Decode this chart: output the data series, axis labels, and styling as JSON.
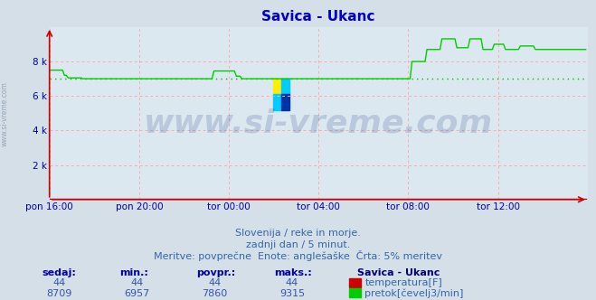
{
  "title": "Savica - Ukanc",
  "title_color": "#0000cc",
  "bg_color": "#d4dfe8",
  "plot_bg_color": "#dce8f0",
  "grid_color": "#ffaaaa",
  "axis_color": "#0000aa",
  "tick_color": "#0000aa",
  "xlabel_ticks": [
    "pon 16:00",
    "pon 20:00",
    "tor 00:00",
    "tor 04:00",
    "tor 08:00",
    "tor 12:00"
  ],
  "ylabel_ticks": [
    "2 k",
    "4 k",
    "6 k",
    "8 k"
  ],
  "ylabel_values": [
    2000,
    4000,
    6000,
    8000
  ],
  "ylim": [
    0,
    10000
  ],
  "xlim": [
    0,
    288
  ],
  "avg_value": 7000,
  "avg_color": "#00bb00",
  "flow_color": "#00cc00",
  "temp_color": "#cc0000",
  "watermark_text": "www.si-vreme.com",
  "watermark_color": "#1a3a8a",
  "watermark_alpha": 0.18,
  "subtitle1": "Slovenija / reke in morje.",
  "subtitle2": "zadnji dan / 5 minut.",
  "subtitle3": "Meritve: povprečne  Enote: anglešaške  Črta: 5% meritev",
  "subtitle_color": "#3366aa",
  "table_header_color": "#0000aa",
  "table_value_color": "#3355aa",
  "legend_title": "Savica - Ukanc",
  "legend_title_color": "#000077",
  "temp_label": "temperatura[F]",
  "flow_label": "pretok[čevelj3/min]",
  "sedaj_label": "sedaj:",
  "min_label": "min.:",
  "povpr_label": "povpr.:",
  "maks_label": "maks.:",
  "temp_sedaj": 44,
  "temp_min": 44,
  "temp_povpr": 44,
  "temp_maks": 44,
  "flow_sedaj": 8709,
  "flow_min": 6957,
  "flow_povpr": 7860,
  "flow_maks": 9315,
  "tick_positions_x": [
    0,
    48,
    96,
    144,
    192,
    240
  ],
  "n_points": 288,
  "left_label": "www.si-vreme.com",
  "left_label_color": "#8899aa"
}
